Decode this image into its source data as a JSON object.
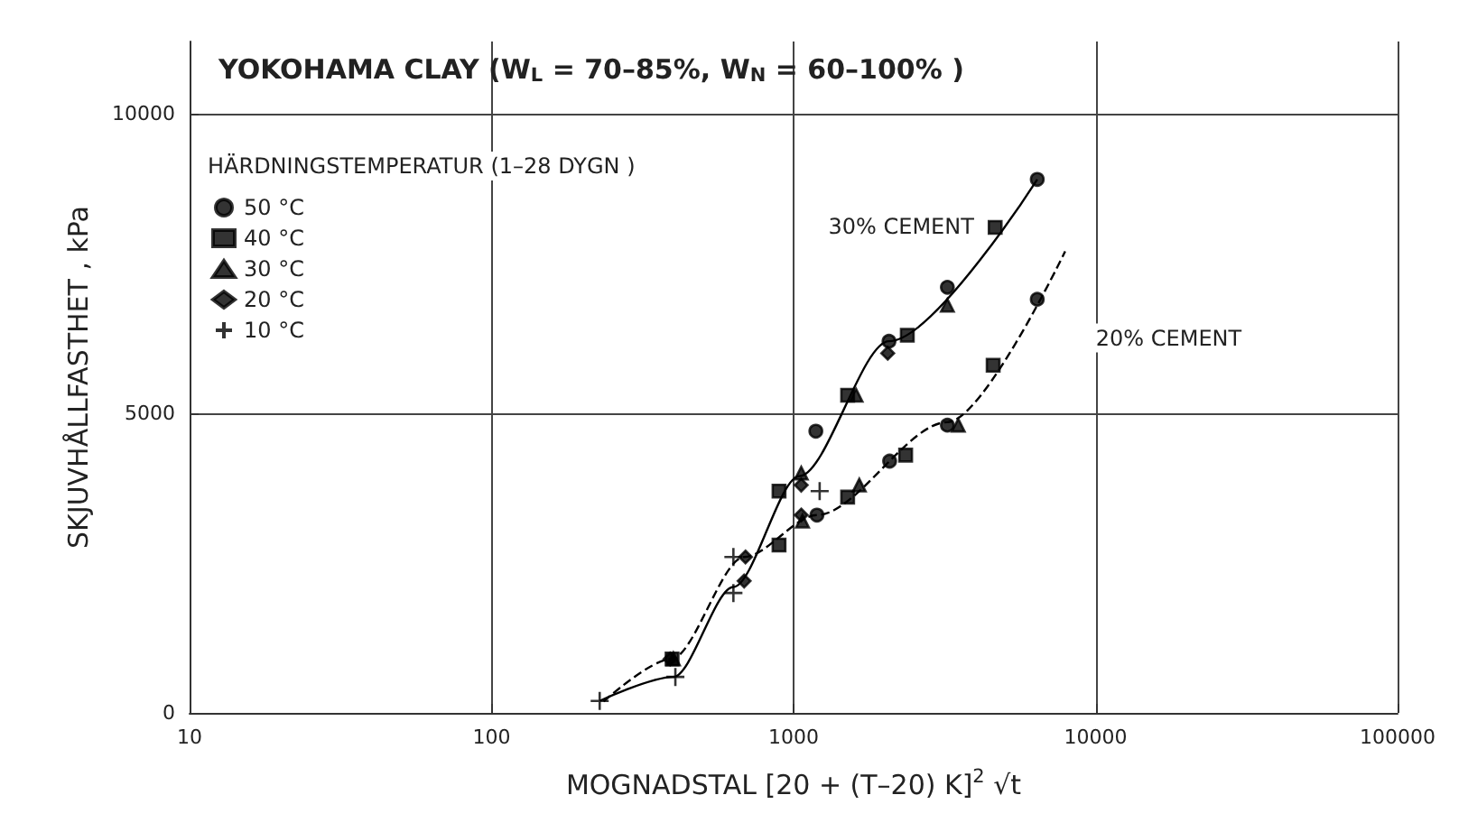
{
  "chart_data": {
    "type": "scatter",
    "title": "YOKOHAMA CLAY (W$_{L}$ = 70–85%, W$_{N}$ = 60–100% )",
    "legend_title": "HÄRDNINGSTEMPERATUR (1–28 DYGN )",
    "xlabel": "MOGNADSTAL [20 + (T–20) K]$^{2}$ √t",
    "ylabel": "SKJUVHÅLLFASTHET , kPa",
    "log": "x",
    "xlim": [
      10,
      100000
    ],
    "xticks": [
      10,
      100,
      1000,
      10000,
      100000
    ],
    "ylim": [
      0,
      11200
    ],
    "yticks": [
      0,
      5000,
      10000
    ],
    "grid": true,
    "legend": "top left",
    "annotations": [
      "30% CEMENT",
      "20% CEMENT"
    ],
    "series": [
      {
        "name": "50 °C",
        "color": "#000000",
        "marker": "circle",
        "x": [
          6410,
          3230,
          2070,
          1185,
          6410,
          3230,
          2080,
          1195
        ],
        "values": [
          8900,
          7100,
          6200,
          4700,
          6900,
          4800,
          4200,
          3300
        ]
      },
      {
        "name": "40 °C",
        "color": "#000000",
        "marker": "square",
        "x": [
          4650,
          2380,
          1510,
          895,
          895,
          4580,
          2350,
          1510,
          396
        ],
        "values": [
          8100,
          6300,
          5300,
          3700,
          2800,
          5800,
          4300,
          3600,
          900
        ]
      },
      {
        "name": "30 °C",
        "color": "#000000",
        "marker": "triangle",
        "x": [
          3230,
          1610,
          1060,
          1070,
          1650,
          3510,
          400
        ],
        "values": [
          6800,
          5300,
          4000,
          3200,
          3800,
          4800,
          900
        ]
      },
      {
        "name": "20 °C",
        "color": "#000000",
        "marker": "diamond",
        "x": [
          2050,
          1060,
          1060,
          693,
          686,
          390
        ],
        "values": [
          6000,
          3800,
          3300,
          2600,
          2200,
          900
        ]
      },
      {
        "name": "10 °C",
        "color": "#000000",
        "marker": "cross",
        "x": [
          228,
          632,
          632,
          1220,
          406
        ],
        "values": [
          200,
          2600,
          2000,
          3700,
          600
        ]
      },
      {
        "type": "line",
        "color": "#000000",
        "marker": "none",
        "line_style": "solid",
        "x": [
          228,
          400,
          632,
          1045,
          2070,
          6410
        ],
        "values": [
          200,
          600,
          2100,
          3950,
          6200,
          8900
        ]
      },
      {
        "type": "line",
        "color": "#000000",
        "marker": "none",
        "line_style": "dashed",
        "x": [
          235,
          394,
          686,
          1195,
          3230,
          7930
        ],
        "values": [
          190,
          900,
          2600,
          3300,
          4850,
          7700
        ]
      }
    ]
  }
}
